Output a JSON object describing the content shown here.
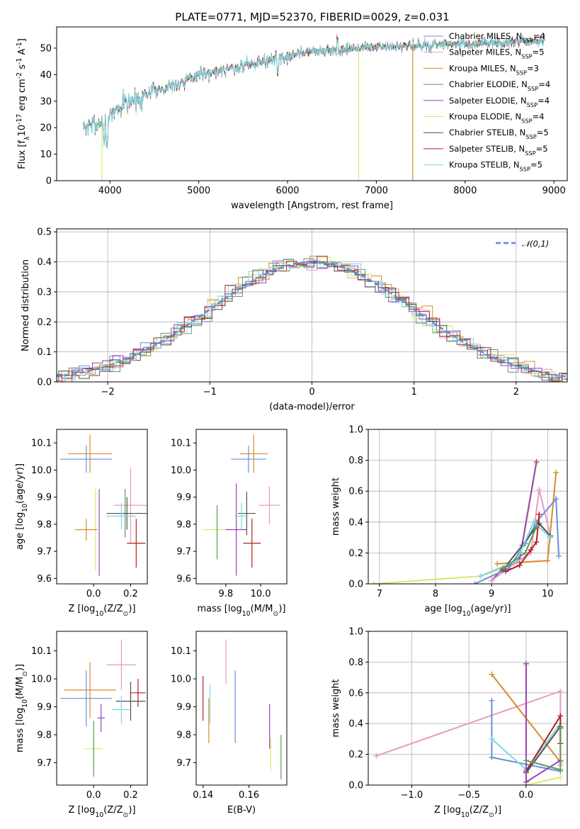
{
  "figure_title": "PLATE=0771, MJD=52370, FIBERID=0029, z=0.031",
  "colors": {
    "chabrier_miles": "#6a8fd8",
    "salpeter_miles": "#e79ac4",
    "kroupa_miles": "#d98a2b",
    "chabrier_elodie": "#5b9b5b",
    "salpeter_elodie": "#9b3fbf",
    "kroupa_elodie": "#d8ea6a",
    "chabrier_stelib": "#505050",
    "salpeter_stelib": "#b02020",
    "kroupa_stelib": "#7ed6e3",
    "normal": "#5a8fd8"
  },
  "chart_data": [
    {
      "id": "spectrum",
      "type": "line",
      "xlabel": "wavelength [Angstrom, rest frame]",
      "ylabel": "Flux [f$_{\\lambda}$10$^{-17}$ erg cm$^{-2}$ s$^{-1}$ A$^{-1}$]",
      "xlim": [
        3400,
        9150
      ],
      "ylim": [
        0,
        58
      ],
      "xticks": [
        4000,
        5000,
        6000,
        7000,
        8000,
        9000
      ],
      "xtick_labels": [
        "4000",
        "5000",
        "6000",
        "7000",
        "8000",
        "9000"
      ],
      "yticks": [
        0,
        10,
        20,
        30,
        40,
        50
      ],
      "ytick_labels": [
        "0",
        "10",
        "20",
        "30",
        "40",
        "50"
      ],
      "legend_position": "right",
      "continuum": [
        [
          3700,
          20
        ],
        [
          3900,
          22
        ],
        [
          4100,
          28
        ],
        [
          4300,
          31
        ],
        [
          4500,
          34
        ],
        [
          4800,
          37
        ],
        [
          5000,
          40
        ],
        [
          5300,
          42
        ],
        [
          5600,
          44
        ],
        [
          6000,
          47
        ],
        [
          6300,
          49
        ],
        [
          6600,
          49
        ],
        [
          6800,
          50
        ],
        [
          7000,
          50.5
        ],
        [
          7300,
          50.5
        ],
        [
          7600,
          51
        ],
        [
          8000,
          51.5
        ],
        [
          8500,
          52
        ],
        [
          8900,
          53
        ]
      ],
      "series": [
        {
          "name": "Chabrier MILES, N$_{SSP}$=4",
          "color_key": "chabrier_miles"
        },
        {
          "name": "Salpeter MILES, N$_{SSP}$=5",
          "color_key": "salpeter_miles"
        },
        {
          "name": "Kroupa MILES, N$_{SSP}$=3",
          "color_key": "kroupa_miles"
        },
        {
          "name": "Chabrier ELODIE, N$_{SSP}$=4",
          "color_key": "chabrier_elodie"
        },
        {
          "name": "Salpeter ELODIE, N$_{SSP}$=4",
          "color_key": "salpeter_elodie"
        },
        {
          "name": "Kroupa ELODIE, N$_{SSP}$=4",
          "color_key": "kroupa_elodie"
        },
        {
          "name": "Chabrier STELIB, N$_{SSP}$=5",
          "color_key": "chabrier_stelib"
        },
        {
          "name": "Salpeter STELIB, N$_{SSP}$=5",
          "color_key": "salpeter_stelib"
        },
        {
          "name": "Kroupa STELIB, N$_{SSP}$=5",
          "color_key": "kroupa_stelib"
        }
      ],
      "dropouts": [
        {
          "x": 3910,
          "color_key": "kroupa_elodie"
        },
        {
          "x": 6800,
          "color_key": "kroupa_elodie"
        },
        {
          "x": 7410,
          "color_key": "kroupa_miles"
        }
      ]
    },
    {
      "id": "residuals",
      "type": "histogram",
      "xlabel": "(data-model)/error",
      "ylabel": "Normed distribution",
      "xlim": [
        -2.5,
        2.5
      ],
      "ylim": [
        0,
        0.51
      ],
      "xticks": [
        -2,
        -1,
        0,
        1,
        2
      ],
      "xtick_labels": [
        "−2",
        "−1",
        "0",
        "1",
        "2"
      ],
      "yticks": [
        0,
        0.1,
        0.2,
        0.3,
        0.4,
        0.5
      ],
      "ytick_labels": [
        "0.0",
        "0.1",
        "0.2",
        "0.3",
        "0.4",
        "0.5"
      ],
      "grid": true,
      "legend_position": "top-right",
      "normal_curve": {
        "name": "$\\mathcal{N}(0,1)$",
        "mean": 0,
        "sigma": 1,
        "style": "dashed",
        "color_key": "normal"
      },
      "bin_width": 0.1
    },
    {
      "id": "age_vs_Z",
      "type": "scatter",
      "xlabel": "Z [log$_{10}$(Z/Z$_\\odot$)]",
      "ylabel": "age  [log$_{10}$(age/yr)]",
      "xlim": [
        -0.2,
        0.29
      ],
      "ylim": [
        9.58,
        10.15
      ],
      "xticks": [
        0.0,
        0.2
      ],
      "xtick_labels": [
        "0.0",
        "0.2"
      ],
      "yticks": [
        9.6,
        9.7,
        9.8,
        9.9,
        10.0,
        10.1
      ],
      "ytick_labels": [
        "9.6",
        "9.7",
        "9.8",
        "9.9",
        "10.0",
        "10.1"
      ],
      "points": [
        {
          "color_key": "chabrier_miles",
          "x": -0.04,
          "xerr": 0.14,
          "y": 10.04,
          "yerr": 0.05
        },
        {
          "color_key": "kroupa_miles",
          "x": -0.02,
          "xerr": 0.12,
          "y": 10.06,
          "yerr": 0.07
        },
        {
          "color_key": "salpeter_miles",
          "x": 0.2,
          "xerr": 0.09,
          "y": 9.87,
          "yerr": 0.14
        },
        {
          "color_key": "chabrier_elodie",
          "x": 0.17,
          "xerr": 0.02,
          "y": 9.84,
          "yerr": 0.09
        },
        {
          "color_key": "salpeter_elodie",
          "x": 0.03,
          "xerr": 0.0,
          "y": 9.77,
          "yerr": 0.16
        },
        {
          "color_key": "kroupa_elodie",
          "x": 0.01,
          "xerr": 0.0,
          "y": 9.78,
          "yerr": 0.15
        },
        {
          "color_key": "chabrier_stelib",
          "x": 0.18,
          "xerr": 0.11,
          "y": 9.84,
          "yerr": 0.06
        },
        {
          "color_key": "salpeter_stelib",
          "x": 0.23,
          "xerr": 0.05,
          "y": 9.73,
          "yerr": 0.09
        },
        {
          "color_key": "kroupa_stelib",
          "x": 0.15,
          "xerr": 0.08,
          "y": 9.83,
          "yerr": 0.05
        },
        {
          "color_key": "kroupa_miles",
          "x": -0.04,
          "xerr": 0.06,
          "y": 9.78,
          "yerr": 0.04
        }
      ]
    },
    {
      "id": "age_vs_mass",
      "type": "scatter",
      "xlabel": "mass [log$_{10}$(M/M$_\\odot$)]",
      "ylabel": "",
      "xlim": [
        9.63,
        10.15
      ],
      "ylim": [
        9.58,
        10.15
      ],
      "xticks": [
        9.8,
        10.0
      ],
      "xtick_labels": [
        "9.8",
        "10.0"
      ],
      "yticks": [
        9.6,
        9.7,
        9.8,
        9.9,
        10.0,
        10.1
      ],
      "ytick_labels": [
        "9.6",
        "9.7",
        "9.8",
        "9.9",
        "10.0",
        "10.1"
      ],
      "points": [
        {
          "color_key": "chabrier_miles",
          "x": 9.93,
          "xerr": 0.1,
          "y": 10.04,
          "yerr": 0.05
        },
        {
          "color_key": "kroupa_miles",
          "x": 9.96,
          "xerr": 0.08,
          "y": 10.06,
          "yerr": 0.07
        },
        {
          "color_key": "salpeter_miles",
          "x": 10.05,
          "xerr": 0.06,
          "y": 9.87,
          "yerr": 0.07
        },
        {
          "color_key": "kroupa_elodie",
          "x": 9.75,
          "xerr": 0.08,
          "y": 9.78,
          "yerr": 0.08
        },
        {
          "color_key": "salpeter_elodie",
          "x": 9.86,
          "xerr": 0.06,
          "y": 9.78,
          "yerr": 0.17
        },
        {
          "color_key": "chabrier_stelib",
          "x": 9.92,
          "xerr": 0.05,
          "y": 9.84,
          "yerr": 0.08
        },
        {
          "color_key": "salpeter_stelib",
          "x": 9.95,
          "xerr": 0.05,
          "y": 9.73,
          "yerr": 0.09
        },
        {
          "color_key": "kroupa_stelib",
          "x": 9.89,
          "xerr": 0.04,
          "y": 9.83,
          "yerr": 0.05
        },
        {
          "color_key": "chabrier_elodie",
          "x": 9.75,
          "xerr": 0.0,
          "y": 9.77,
          "yerr": 0.1
        }
      ]
    },
    {
      "id": "weight_vs_age",
      "type": "line",
      "xlabel": "age  [log$_{10}$(age/yr)]",
      "ylabel": "mass weight",
      "xlim": [
        6.8,
        10.35
      ],
      "ylim": [
        0,
        1.0
      ],
      "xticks": [
        7,
        8,
        9,
        10
      ],
      "xtick_labels": [
        "7",
        "8",
        "9",
        "10"
      ],
      "yticks": [
        0,
        0.2,
        0.4,
        0.6,
        0.8,
        1.0
      ],
      "ytick_labels": [
        "0.0",
        "0.2",
        "0.4",
        "0.6",
        "0.8",
        "1.0"
      ],
      "grid": true,
      "series": [
        {
          "color_key": "kroupa_elodie",
          "points": [
            [
              6.9,
              0.0
            ],
            [
              8.8,
              0.05
            ],
            [
              9.2,
              0.1
            ],
            [
              9.5,
              0.14
            ],
            [
              9.8,
              0.78
            ]
          ]
        },
        {
          "color_key": "salpeter_elodie",
          "points": [
            [
              9.0,
              0.02
            ],
            [
              9.2,
              0.1
            ],
            [
              9.5,
              0.16
            ],
            [
              9.8,
              0.79
            ]
          ]
        },
        {
          "color_key": "kroupa_miles",
          "points": [
            [
              9.1,
              0.13
            ],
            [
              10.0,
              0.15
            ],
            [
              10.15,
              0.72
            ]
          ]
        },
        {
          "color_key": "salpeter_miles",
          "points": [
            [
              9.0,
              0.02
            ],
            [
              9.4,
              0.13
            ],
            [
              9.7,
              0.2
            ],
            [
              9.85,
              0.61
            ],
            [
              10.05,
              0.31
            ]
          ]
        },
        {
          "color_key": "chabrier_miles",
          "points": [
            [
              8.7,
              0.0
            ],
            [
              9.3,
              0.1
            ],
            [
              9.6,
              0.26
            ],
            [
              9.8,
              0.4
            ],
            [
              10.15,
              0.55
            ],
            [
              10.2,
              0.18
            ]
          ]
        },
        {
          "color_key": "chabrier_stelib",
          "points": [
            [
              9.2,
              0.09
            ],
            [
              9.55,
              0.25
            ],
            [
              9.8,
              0.37
            ],
            [
              9.85,
              0.39
            ],
            [
              10.05,
              0.31
            ]
          ]
        },
        {
          "color_key": "salpeter_stelib",
          "points": [
            [
              9.25,
              0.08
            ],
            [
              9.5,
              0.12
            ],
            [
              9.7,
              0.22
            ],
            [
              9.8,
              0.27
            ],
            [
              9.85,
              0.45
            ]
          ]
        },
        {
          "color_key": "kroupa_stelib",
          "points": [
            [
              8.8,
              0.05
            ],
            [
              9.45,
              0.15
            ],
            [
              9.75,
              0.4
            ],
            [
              10.05,
              0.3
            ]
          ]
        },
        {
          "color_key": "chabrier_elodie",
          "points": [
            [
              9.2,
              0.1
            ],
            [
              9.6,
              0.2
            ],
            [
              9.8,
              0.37
            ]
          ]
        }
      ]
    },
    {
      "id": "mass_vs_Z",
      "type": "scatter",
      "xlabel": "Z [log$_{10}$(Z/Z$_\\odot$)]",
      "ylabel": "mass [log$_{10}$(M/M$_\\odot$)]",
      "xlim": [
        -0.2,
        0.29
      ],
      "ylim": [
        9.62,
        10.17
      ],
      "xticks": [
        0.0,
        0.2
      ],
      "xtick_labels": [
        "0.0",
        "0.2"
      ],
      "yticks": [
        9.7,
        9.8,
        9.9,
        10.0,
        10.1
      ],
      "ytick_labels": [
        "9.7",
        "9.8",
        "9.9",
        "10.0",
        "10.1"
      ],
      "points": [
        {
          "color_key": "salpeter_miles",
          "x": 0.15,
          "xerr": 0.08,
          "y": 10.05,
          "yerr": 0.09
        },
        {
          "color_key": "kroupa_miles",
          "x": -0.02,
          "xerr": 0.14,
          "y": 9.96,
          "yerr": 0.1
        },
        {
          "color_key": "chabrier_miles",
          "x": -0.04,
          "xerr": 0.14,
          "y": 9.93,
          "yerr": 0.1
        },
        {
          "color_key": "salpeter_stelib",
          "x": 0.24,
          "xerr": 0.04,
          "y": 9.95,
          "yerr": 0.05
        },
        {
          "color_key": "chabrier_stelib",
          "x": 0.2,
          "xerr": 0.08,
          "y": 9.92,
          "yerr": 0.07
        },
        {
          "color_key": "kroupa_stelib",
          "x": 0.15,
          "xerr": 0.05,
          "y": 9.89,
          "yerr": 0.05
        },
        {
          "color_key": "salpeter_elodie",
          "x": 0.04,
          "xerr": 0.02,
          "y": 9.86,
          "yerr": 0.05
        },
        {
          "color_key": "kroupa_elodie",
          "x": 0.0,
          "xerr": 0.05,
          "y": 9.75,
          "yerr": 0.05
        },
        {
          "color_key": "chabrier_elodie",
          "x": 0.0,
          "xerr": 0.0,
          "y": 9.75,
          "yerr": 0.1
        }
      ]
    },
    {
      "id": "mass_vs_ebv",
      "type": "scatter",
      "xlabel": "E(B-V)",
      "ylabel": "",
      "xlim": [
        0.137,
        0.1765
      ],
      "ylim": [
        9.62,
        10.17
      ],
      "xticks": [
        0.14,
        0.16
      ],
      "xtick_labels": [
        "0.14",
        "0.16"
      ],
      "yticks": [
        9.7,
        9.8,
        9.9,
        10.0,
        10.1
      ],
      "ytick_labels": [
        "9.7",
        "9.8",
        "9.9",
        "10.0",
        "10.1"
      ],
      "points": [
        {
          "color_key": "salpeter_stelib",
          "x": 0.14,
          "y": 9.93,
          "yerr": 0.08
        },
        {
          "color_key": "kroupa_miles",
          "x": 0.1425,
          "y": 9.85,
          "yerr": 0.08
        },
        {
          "color_key": "kroupa_stelib",
          "x": 0.143,
          "y": 9.91,
          "yerr": 0.07
        },
        {
          "color_key": "salpeter_miles",
          "x": 0.15,
          "y": 10.06,
          "yerr": 0.08
        },
        {
          "color_key": "chabrier_miles",
          "x": 0.154,
          "y": 9.9,
          "yerr": 0.13
        },
        {
          "color_key": "salpeter_elodie",
          "x": 0.169,
          "y": 9.83,
          "yerr": 0.08
        },
        {
          "color_key": "kroupa_elodie",
          "x": 0.1695,
          "y": 9.73,
          "yerr": 0.06
        },
        {
          "color_key": "chabrier_elodie",
          "x": 0.174,
          "y": 9.72,
          "yerr": 0.08
        }
      ]
    },
    {
      "id": "weight_vs_Z",
      "type": "line",
      "xlabel": "Z [log$_{10}$(Z/Z$_\\odot$)]",
      "ylabel": "mass weight",
      "xlim": [
        -1.38,
        0.36
      ],
      "ylim": [
        0,
        1.0
      ],
      "xticks": [
        -1.0,
        -0.5,
        0.0
      ],
      "xtick_labels": [
        "−1.0",
        "−0.5",
        "0.0"
      ],
      "yticks": [
        0,
        0.2,
        0.4,
        0.6,
        0.8,
        1.0
      ],
      "ytick_labels": [
        "0.0",
        "0.2",
        "0.4",
        "0.6",
        "0.8",
        "1.0"
      ],
      "grid": true,
      "series": [
        {
          "color_key": "salpeter_miles",
          "points": [
            [
              -1.31,
              0.19
            ],
            [
              0.3,
              0.61
            ],
            [
              0.3,
              0.13
            ]
          ]
        },
        {
          "color_key": "kroupa_miles",
          "points": [
            [
              -0.3,
              0.72
            ],
            [
              0.3,
              0.15
            ]
          ]
        },
        {
          "color_key": "chabrier_miles",
          "points": [
            [
              -0.3,
              0.55
            ],
            [
              -0.3,
              0.18
            ],
            [
              0.3,
              0.09
            ]
          ]
        },
        {
          "color_key": "kroupa_stelib",
          "points": [
            [
              -0.3,
              0.3
            ],
            [
              0.0,
              0.1
            ],
            [
              0.3,
              0.4
            ]
          ]
        },
        {
          "color_key": "salpeter_stelib",
          "points": [
            [
              0.0,
              0.09
            ],
            [
              0.3,
              0.45
            ],
            [
              0.3,
              0.27
            ]
          ]
        },
        {
          "color_key": "chabrier_stelib",
          "points": [
            [
              0.0,
              0.08
            ],
            [
              0.3,
              0.38
            ]
          ]
        },
        {
          "color_key": "kroupa_elodie",
          "points": [
            [
              0.0,
              0.78
            ],
            [
              0.0,
              0.0
            ],
            [
              0.3,
              0.05
            ]
          ]
        },
        {
          "color_key": "salpeter_elodie",
          "points": [
            [
              0.0,
              0.79
            ],
            [
              0.0,
              0.02
            ],
            [
              0.3,
              0.16
            ]
          ]
        },
        {
          "color_key": "chabrier_elodie",
          "points": [
            [
              0.0,
              0.16
            ],
            [
              0.3,
              0.1
            ],
            [
              0.3,
              0.37
            ]
          ]
        }
      ]
    }
  ]
}
